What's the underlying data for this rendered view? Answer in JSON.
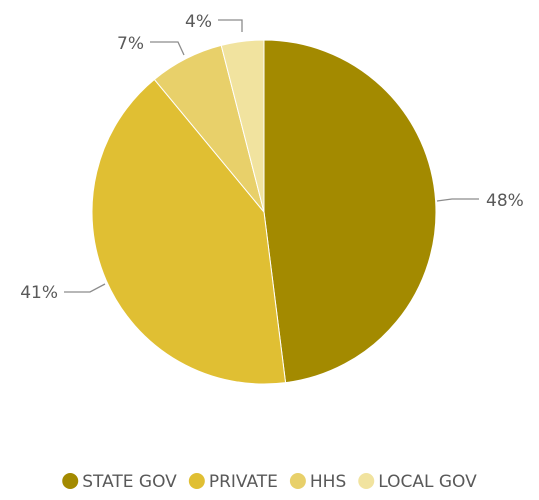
{
  "chart_data": {
    "type": "pie",
    "title": "",
    "categories": [
      "STATE GOV",
      "PRIVATE",
      "HHS",
      "LOCAL GOV"
    ],
    "values": [
      48,
      41,
      7,
      4
    ],
    "value_labels": [
      "48%",
      "41%",
      "7%",
      "4%"
    ],
    "colors": [
      "#a38a00",
      "#e0bf33",
      "#e8d06a",
      "#f1e39f"
    ],
    "legend_position": "bottom",
    "start_angle_deg": 0,
    "direction": "clockwise"
  }
}
